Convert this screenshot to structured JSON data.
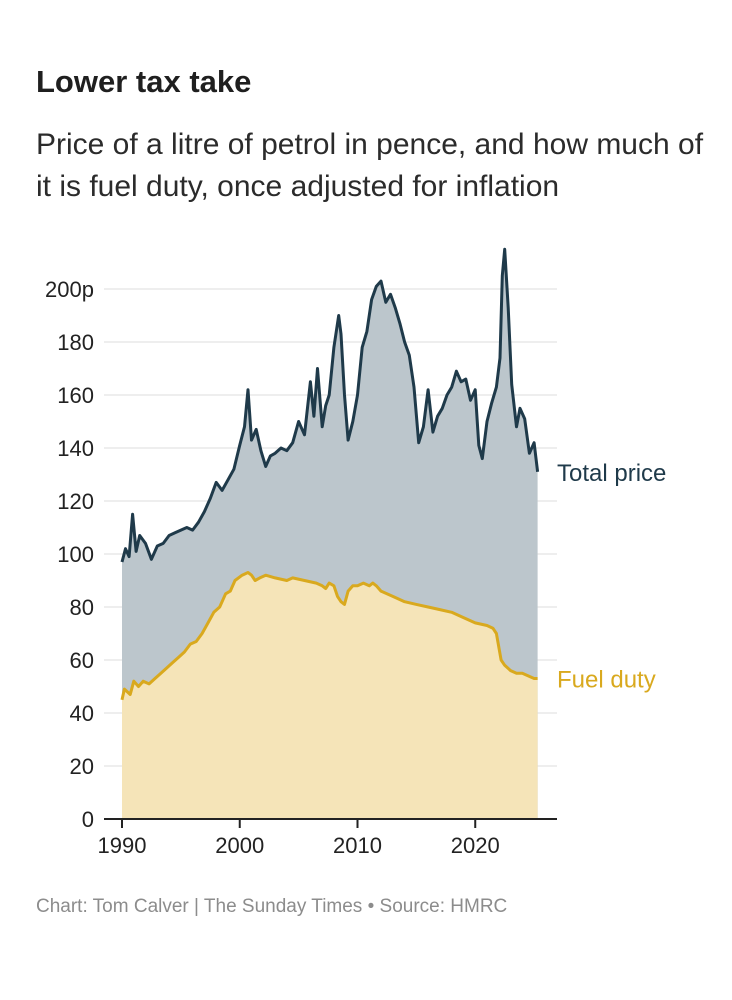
{
  "title": "Lower tax take",
  "subtitle": "Price of a litre of petrol in pence, and how much of it is fuel duty, once adjusted for inflation",
  "footer": "Chart: Tom Calver | The Sunday Times • Source: HMRC",
  "colors": {
    "total_fill": "#bcc6cc",
    "total_line": "#1f3a4a",
    "duty_fill": "#f5e4b8",
    "duty_line": "#d9a91e",
    "grid": "#dddddd",
    "axis": "#222222"
  },
  "chart_data": {
    "type": "area",
    "title": "Lower tax take",
    "xlabel": "",
    "ylabel": "",
    "xlim": [
      1990,
      2025.5
    ],
    "ylim": [
      0,
      200
    ],
    "y_ticks": [
      0,
      20,
      40,
      60,
      80,
      100,
      120,
      140,
      160,
      180,
      200
    ],
    "y_tick_labels": [
      "0",
      "20",
      "40",
      "60",
      "80",
      "100",
      "120",
      "140",
      "160",
      "180",
      "200p"
    ],
    "x_ticks": [
      1990,
      2000,
      2010,
      2020
    ],
    "x_tick_labels": [
      "1990",
      "2000",
      "2010",
      "2020"
    ],
    "grid": true,
    "legend": "direct labels at line ends",
    "series": [
      {
        "name": "Total price",
        "x": [
          1990,
          1990.3,
          1990.6,
          1990.9,
          1991.2,
          1991.5,
          1992,
          1992.5,
          1993,
          1993.5,
          1994,
          1994.5,
          1995,
          1995.5,
          1996,
          1996.5,
          1997,
          1997.5,
          1998,
          1998.5,
          1999,
          1999.5,
          2000,
          2000.4,
          2000.7,
          2001,
          2001.4,
          2001.8,
          2002.2,
          2002.6,
          2003,
          2003.5,
          2004,
          2004.5,
          2005,
          2005.5,
          2006,
          2006.3,
          2006.6,
          2007,
          2007.3,
          2007.6,
          2008,
          2008.4,
          2008.6,
          2008.9,
          2009.2,
          2009.6,
          2010,
          2010.4,
          2010.8,
          2011.2,
          2011.6,
          2012,
          2012.4,
          2012.8,
          2013.2,
          2013.6,
          2014,
          2014.4,
          2014.8,
          2015.2,
          2015.6,
          2016,
          2016.4,
          2016.8,
          2017.2,
          2017.6,
          2018,
          2018.4,
          2018.8,
          2019.2,
          2019.6,
          2020,
          2020.3,
          2020.6,
          2021,
          2021.4,
          2021.8,
          2022.1,
          2022.3,
          2022.5,
          2022.8,
          2023.1,
          2023.5,
          2023.8,
          2024.2,
          2024.6,
          2025,
          2025.3
        ],
        "values": [
          97,
          102,
          99,
          115,
          101,
          107,
          104,
          98,
          103,
          104,
          107,
          108,
          109,
          110,
          109,
          112,
          116,
          121,
          127,
          124,
          128,
          132,
          141,
          148,
          162,
          143,
          147,
          139,
          133,
          137,
          138,
          140,
          139,
          142,
          150,
          145,
          165,
          152,
          170,
          148,
          156,
          160,
          178,
          190,
          183,
          160,
          143,
          150,
          160,
          178,
          184,
          196,
          201,
          203,
          195,
          198,
          193,
          187,
          180,
          175,
          163,
          142,
          148,
          162,
          146,
          152,
          155,
          160,
          163,
          169,
          165,
          166,
          158,
          162,
          141,
          136,
          150,
          157,
          163,
          174,
          205,
          215,
          193,
          164,
          148,
          155,
          151,
          138,
          142,
          131
        ]
      },
      {
        "name": "Fuel duty",
        "x": [
          1990,
          1990.2,
          1990.7,
          1991,
          1991.4,
          1991.8,
          1992.3,
          1992.8,
          1993.3,
          1993.8,
          1994.3,
          1994.8,
          1995.3,
          1995.8,
          1996.3,
          1996.8,
          1997.3,
          1997.8,
          1998.3,
          1998.8,
          1999.2,
          1999.6,
          2000.2,
          2000.7,
          2001,
          2001.3,
          2001.7,
          2002.2,
          2003,
          2004,
          2004.5,
          2005.5,
          2006.5,
          2007,
          2007.3,
          2007.6,
          2008,
          2008.3,
          2008.6,
          2008.9,
          2009.2,
          2009.6,
          2010,
          2010.5,
          2011,
          2011.3,
          2011.6,
          2012,
          2013,
          2014,
          2015,
          2016,
          2017,
          2018,
          2019,
          2020,
          2021,
          2021.5,
          2021.8,
          2022.2,
          2022.5,
          2023,
          2023.5,
          2024,
          2024.5,
          2025,
          2025.3
        ],
        "values": [
          45,
          49,
          47,
          52,
          50,
          52,
          51,
          53,
          55,
          57,
          59,
          61,
          63,
          66,
          67,
          70,
          74,
          78,
          80,
          85,
          86,
          90,
          92,
          93,
          92,
          90,
          91,
          92,
          91,
          90,
          91,
          90,
          89,
          88,
          87,
          89,
          88,
          84,
          82,
          81,
          86,
          88,
          88,
          89,
          88,
          89,
          88,
          86,
          84,
          82,
          81,
          80,
          79,
          78,
          76,
          74,
          73,
          72,
          70,
          60,
          58,
          56,
          55,
          55,
          54,
          53,
          53
        ]
      }
    ]
  }
}
